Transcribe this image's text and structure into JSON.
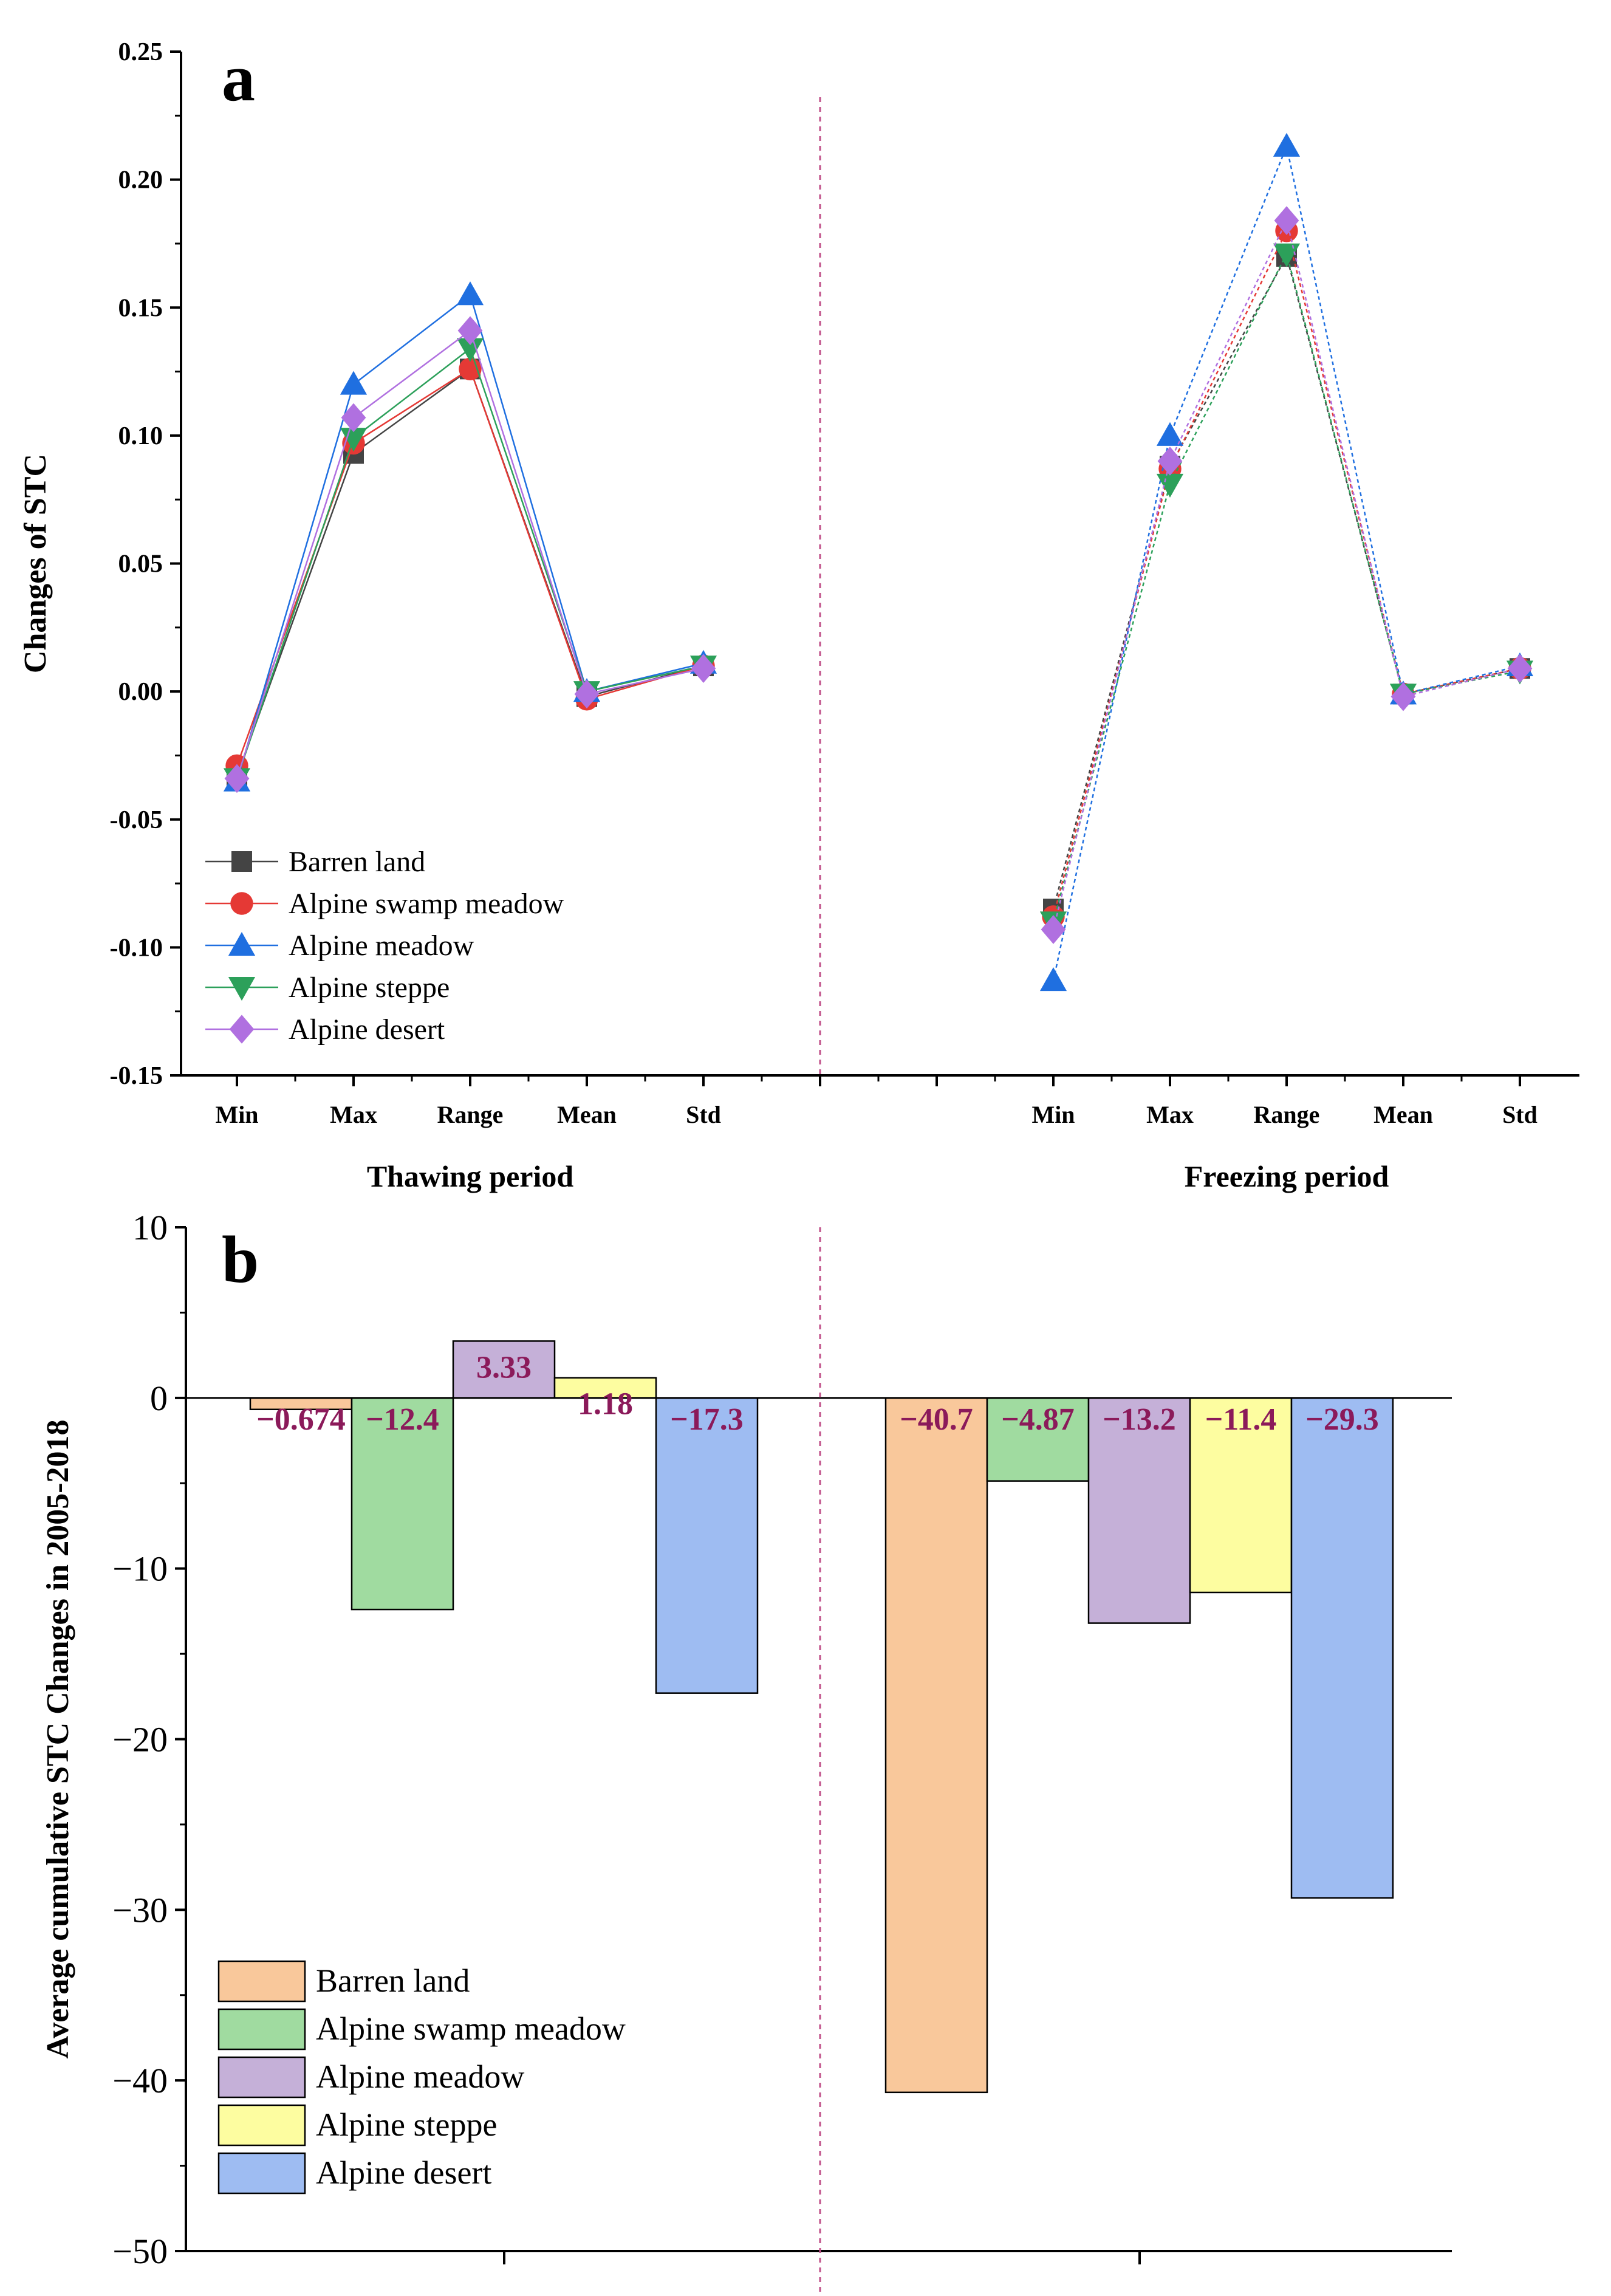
{
  "colors": {
    "barren": "#444444",
    "swamp": "#e53935",
    "meadow": "#1f6fe0",
    "steppe": "#2ca05a",
    "desert": "#b070e0",
    "label": "#8b1a5a",
    "divider": "#c0508a",
    "bar_barren": "#f9c89b",
    "bar_swamp": "#a0dba0",
    "bar_meadow": "#c5b0d8",
    "bar_steppe": "#fdfda0",
    "bar_desert": "#9ebcf2"
  },
  "chart_data": [
    {
      "id": "a",
      "type": "line",
      "panel_label": "a",
      "ylabel": "Changes of STC",
      "ylim": [
        -0.15,
        0.25
      ],
      "yticks": [
        "0.25",
        "0.20",
        "0.15",
        "0.10",
        "0.05",
        "0.00",
        "-0.05",
        "-0.10",
        "-0.15"
      ],
      "ytick_values": [
        0.25,
        0.2,
        0.15,
        0.1,
        0.05,
        0.0,
        -0.05,
        -0.1,
        -0.15
      ],
      "groups": [
        {
          "name": "Thawing period",
          "categories": [
            "Min",
            "Max",
            "Range",
            "Mean",
            "Std"
          ]
        },
        {
          "name": "Freezing period",
          "categories": [
            "Min",
            "Max",
            "Range",
            "Mean",
            "Std"
          ]
        }
      ],
      "legend_position": "bottom-left",
      "series": [
        {
          "name": "Barren land",
          "marker": "square",
          "color": "#444444",
          "thawing": [
            -0.033,
            0.093,
            0.126,
            -0.002,
            0.01
          ],
          "freezing": [
            -0.085,
            0.088,
            0.17,
            -0.001,
            0.009
          ]
        },
        {
          "name": "Alpine swamp meadow",
          "marker": "circle",
          "color": "#e53935",
          "thawing": [
            -0.029,
            0.097,
            0.126,
            -0.003,
            0.01
          ],
          "freezing": [
            -0.088,
            0.087,
            0.18,
            -0.001,
            0.009
          ]
        },
        {
          "name": "Alpine meadow",
          "marker": "triangle-up",
          "color": "#1f6fe0",
          "thawing": [
            -0.035,
            0.12,
            0.155,
            0.0,
            0.011
          ],
          "freezing": [
            -0.113,
            0.1,
            0.213,
            -0.001,
            0.01
          ]
        },
        {
          "name": "Alpine steppe",
          "marker": "triangle-down",
          "color": "#2ca05a",
          "thawing": [
            -0.034,
            0.099,
            0.134,
            0.0,
            0.01
          ],
          "freezing": [
            -0.09,
            0.081,
            0.171,
            -0.001,
            0.008
          ]
        },
        {
          "name": "Alpine desert",
          "marker": "diamond",
          "color": "#b070e0",
          "thawing": [
            -0.034,
            0.107,
            0.141,
            -0.001,
            0.009
          ],
          "freezing": [
            -0.093,
            0.09,
            0.184,
            -0.002,
            0.009
          ]
        }
      ]
    },
    {
      "id": "b",
      "type": "bar",
      "panel_label": "b",
      "ylabel": "Average cumulative STC Changes in 2005-2018",
      "ylim": [
        -50,
        10
      ],
      "yticks": [
        "10",
        "0",
        "−10",
        "−20",
        "−30",
        "−40",
        "−50"
      ],
      "ytick_values": [
        10,
        0,
        -10,
        -20,
        -30,
        -40,
        -50
      ],
      "legend_position": "bottom-left",
      "series": [
        {
          "name": "Barren land",
          "color": "#f9c89b",
          "thawing": -0.674,
          "freezing": -40.7,
          "thawing_label": "−0.674",
          "freezing_label": "−40.7"
        },
        {
          "name": "Alpine swamp meadow",
          "color": "#a0dba0",
          "thawing": -12.4,
          "freezing": -4.87,
          "thawing_label": "−12.4",
          "freezing_label": "−4.87"
        },
        {
          "name": "Alpine meadow",
          "color": "#c5b0d8",
          "thawing": 3.33,
          "freezing": -13.2,
          "thawing_label": "3.33",
          "freezing_label": "−13.2"
        },
        {
          "name": "Alpine steppe",
          "color": "#fdfda0",
          "thawing": 1.18,
          "freezing": -11.4,
          "thawing_label": "1.18",
          "freezing_label": "−11.4"
        },
        {
          "name": "Alpine desert",
          "color": "#9ebcf2",
          "thawing": -17.3,
          "freezing": -29.3,
          "thawing_label": "−17.3",
          "freezing_label": "−29.3"
        }
      ]
    }
  ]
}
